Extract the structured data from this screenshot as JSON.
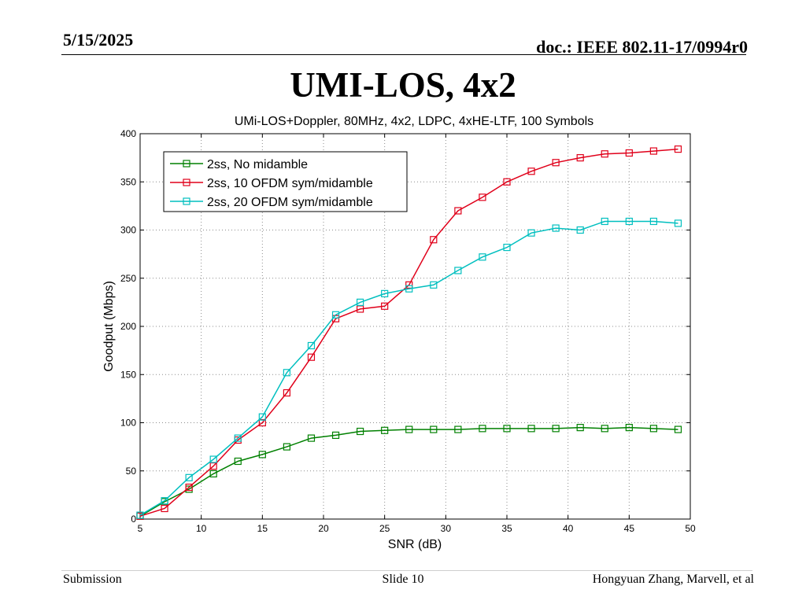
{
  "header": {
    "date": "5/15/2025",
    "doc": "doc.: IEEE 802.11-17/0994r0"
  },
  "slide": {
    "title": "UMI-LOS, 4x2"
  },
  "footer": {
    "left": "Submission",
    "center": "Slide 10",
    "right": "Hongyuan Zhang, Marvell, et al"
  },
  "chart_data": {
    "type": "line",
    "title": "UMi-LOS+Doppler, 80MHz, 4x2, LDPC, 4xHE-LTF, 100 Symbols",
    "xlabel": "SNR (dB)",
    "ylabel": "Goodput (Mbps)",
    "xlim": [
      5,
      50
    ],
    "ylim": [
      0,
      400
    ],
    "xticks": [
      5,
      10,
      15,
      20,
      25,
      30,
      35,
      40,
      45,
      50
    ],
    "yticks": [
      0,
      50,
      100,
      150,
      200,
      250,
      300,
      350,
      400
    ],
    "grid": true,
    "legend_position": "top-left",
    "marker": "square",
    "x": [
      5,
      7,
      9,
      11,
      13,
      15,
      17,
      19,
      21,
      23,
      25,
      27,
      29,
      31,
      33,
      35,
      37,
      39,
      41,
      43,
      45,
      47,
      49
    ],
    "series": [
      {
        "name": "2ss, No midamble",
        "color": "#008000",
        "values": [
          3,
          18,
          31,
          47,
          60,
          67,
          75,
          84,
          87,
          91,
          92,
          93,
          93,
          93,
          94,
          94,
          94,
          94,
          95,
          94,
          95,
          94,
          93
        ]
      },
      {
        "name": "2ss, 10 OFDM sym/midamble",
        "color": "#e0001a",
        "values": [
          3,
          11,
          33,
          55,
          82,
          100,
          131,
          168,
          208,
          218,
          221,
          243,
          290,
          320,
          334,
          350,
          361,
          370,
          375,
          379,
          380,
          382,
          384
        ]
      },
      {
        "name": "2ss, 20 OFDM sym/midamble",
        "color": "#00bfbf",
        "values": [
          4,
          19,
          43,
          62,
          84,
          106,
          152,
          180,
          212,
          225,
          234,
          239,
          243,
          258,
          272,
          282,
          297,
          302,
          300,
          309,
          309,
          309,
          307
        ]
      }
    ]
  }
}
